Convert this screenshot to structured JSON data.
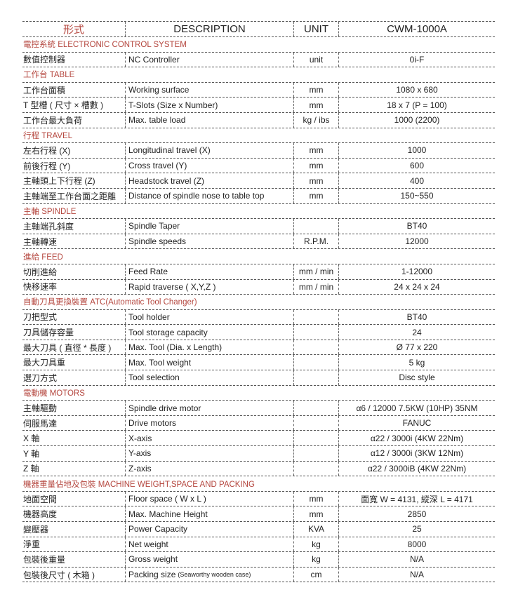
{
  "header": {
    "col1": "形式",
    "col2": "DESCRIPTION",
    "col3": "UNIT",
    "col4": "CWM-1000A"
  },
  "accent_color": "#b5473f",
  "sections": [
    {
      "title": "電控系統 ELECTRONIC CONTROL SYSTEM",
      "rows": [
        {
          "zh": "數值控制器",
          "desc": "NC Controller",
          "unit": "unit",
          "value": "0i-F"
        }
      ]
    },
    {
      "title": "工作台 TABLE",
      "rows": [
        {
          "zh": "工作台面積",
          "desc": "Working surface",
          "unit": "mm",
          "value": "1080 x 680"
        },
        {
          "zh": "T 型槽 ( 尺寸 × 槽數 )",
          "desc": "T-Slots (Size x Number)",
          "unit": "mm",
          "value": "18 x 7 (P = 100)"
        },
        {
          "zh": "工作台最大負荷",
          "desc": "Max. table load",
          "unit": "kg / ibs",
          "value": "1000 (2200)"
        }
      ]
    },
    {
      "title": "行程 TRAVEL",
      "rows": [
        {
          "zh": "左右行程 (X)",
          "desc": "Longitudinal travel (X)",
          "unit": "mm",
          "value": "1000"
        },
        {
          "zh": "前後行程 (Y)",
          "desc": "Cross travel (Y)",
          "unit": "mm",
          "value": "600"
        },
        {
          "zh": "主軸頭上下行程 (Z)",
          "desc": "Headstock travel (Z)",
          "unit": "mm",
          "value": "400"
        },
        {
          "zh": "主軸端至工作台面之距離",
          "desc": "Distance of spindle nose to table top",
          "unit": "mm",
          "value": "150~550"
        }
      ]
    },
    {
      "title": "主軸 SPINDLE",
      "rows": [
        {
          "zh": "主軸端孔斜度",
          "desc": "Spindle Taper",
          "unit": "",
          "value": "BT40"
        },
        {
          "zh": "主軸轉速",
          "desc": "Spindle speeds",
          "unit": "R.P.M.",
          "value": "12000"
        }
      ]
    },
    {
      "title": "進給 FEED",
      "rows": [
        {
          "zh": "切削進給",
          "desc": "Feed Rate",
          "unit": "mm / min",
          "value": "1-12000"
        },
        {
          "zh": "快移速率",
          "desc": "Rapid traverse ( X,Y,Z )",
          "unit": "mm / min",
          "value": "24 x 24 x 24"
        }
      ]
    },
    {
      "title": "自動刀具更換裝置 ATC(Automatic Tool Changer)",
      "rows": [
        {
          "zh": "刀把型式",
          "desc": "Tool holder",
          "unit": "",
          "value": "BT40"
        },
        {
          "zh": "刀具儲存容量",
          "desc": "Tool storage capacity",
          "unit": "",
          "value": "24"
        },
        {
          "zh": "最大刀具 ( 直徑 * 長度 )",
          "desc": "Max. Tool (Dia. x Length)",
          "unit": "",
          "value": "Ø 77 x 220"
        },
        {
          "zh": "最大刀具重",
          "desc": "Max. Tool weight",
          "unit": "",
          "value": "5 kg"
        },
        {
          "zh": "選刀方式",
          "desc": "Tool selection",
          "unit": "",
          "value": "Disc style"
        }
      ]
    },
    {
      "title": "電動機 MOTORS",
      "rows": [
        {
          "zh": "主軸驅動",
          "desc": "Spindle drive motor",
          "unit": "",
          "value": "α6 / 12000 7.5KW (10HP) 35NM"
        },
        {
          "zh": "伺服馬達",
          "desc": "Drive motors",
          "unit": "",
          "value": "FANUC"
        },
        {
          "zh": "X 軸",
          "desc": "X-axis",
          "unit": "",
          "value": "α22 / 3000i   (4KW 22Nm)"
        },
        {
          "zh": "Y 軸",
          "desc": "Y-axis",
          "unit": "",
          "value": "α12 / 3000i   (3KW 12Nm)"
        },
        {
          "zh": "Z 軸",
          "desc": "Z-axis",
          "unit": "",
          "value": "α22 / 3000iB (4KW 22Nm)"
        }
      ]
    },
    {
      "title": "機器重量佔地及包裝 MACHINE WEIGHT,SPACE AND PACKING",
      "rows": [
        {
          "zh": "地面空間",
          "desc": "Floor space ( W x L )",
          "unit": "mm",
          "value": "面寬 W = 4131, 縱深 L = 4171"
        },
        {
          "zh": "機器高度",
          "desc": "Max. Machine Height",
          "unit": "mm",
          "value": "2850"
        },
        {
          "zh": "變壓器",
          "desc": "Power Capacity",
          "unit": "KVA",
          "value": "25"
        },
        {
          "zh": "淨重",
          "desc": "Net weight",
          "unit": "kg",
          "value": "8000"
        },
        {
          "zh": "包裝後重量",
          "desc": "Gross weight",
          "unit": "kg",
          "value": "N/A"
        },
        {
          "zh": "包裝後尺寸 ( 木箱 )",
          "desc": "Packing size",
          "desc_note": "(Seaworthy wooden case)",
          "unit": "cm",
          "value": "N/A"
        }
      ]
    }
  ]
}
